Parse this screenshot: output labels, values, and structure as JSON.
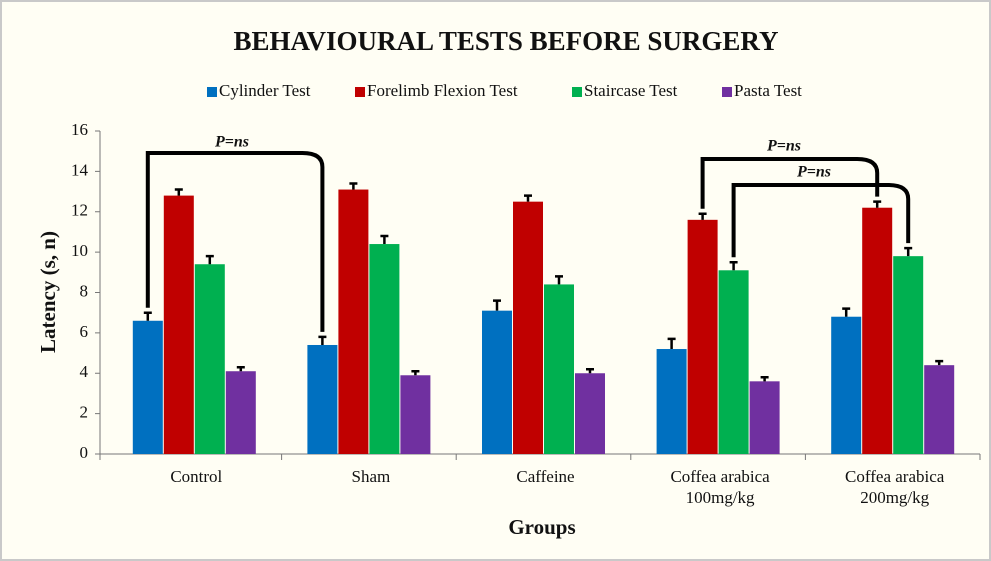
{
  "chart_data": {
    "type": "bar",
    "title": "BEHAVIOURAL TESTS BEFORE SURGERY",
    "x_label": "Groups",
    "y_label": "Latency (s, n)",
    "categories": [
      "Control",
      "Sham",
      "Caffeine",
      "Coffea arabica 100mg/kg",
      "Coffea arabica 200mg/kg"
    ],
    "series": [
      {
        "name": "Cylinder Test",
        "color": "#0070c0",
        "values": [
          6.6,
          5.4,
          7.1,
          5.2,
          6.8
        ],
        "errors": [
          0.4,
          0.4,
          0.5,
          0.5,
          0.4
        ]
      },
      {
        "name": "Forelimb Flexion Test",
        "color": "#c00000",
        "values": [
          12.8,
          13.1,
          12.5,
          11.6,
          12.2
        ],
        "errors": [
          0.3,
          0.3,
          0.3,
          0.3,
          0.3
        ]
      },
      {
        "name": "Staircase Test",
        "color": "#00b050",
        "values": [
          9.4,
          10.4,
          8.4,
          9.1,
          9.8
        ],
        "errors": [
          0.4,
          0.4,
          0.4,
          0.4,
          0.4
        ]
      },
      {
        "name": "Pasta Test",
        "color": "#7030a0",
        "values": [
          4.1,
          3.9,
          4.0,
          3.6,
          4.4
        ],
        "errors": [
          0.2,
          0.2,
          0.2,
          0.2,
          0.2
        ]
      }
    ],
    "annotations": [
      "P=ns",
      "P=ns",
      "P=ns"
    ],
    "ylim": [
      0,
      16
    ],
    "yticks": [
      0,
      2,
      4,
      6,
      8,
      10,
      12,
      14,
      16
    ],
    "legend": "top"
  }
}
